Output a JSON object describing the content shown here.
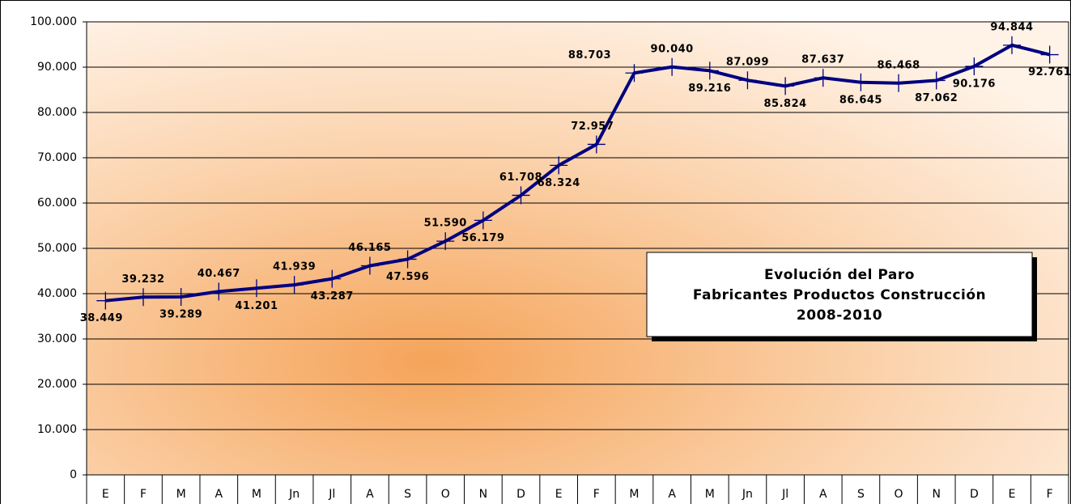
{
  "chart_data": {
    "type": "line",
    "title": [
      "Evolución del Paro",
      "Fabricantes Productos Construcción",
      "2008-2010"
    ],
    "categories": [
      "E",
      "F",
      "M",
      "A",
      "M",
      "Jn",
      "Jl",
      "A",
      "S",
      "O",
      "N",
      "D",
      "E",
      "F",
      "M",
      "A",
      "M",
      "Jn",
      "Jl",
      "A",
      "S",
      "O",
      "N",
      "D",
      "E",
      "F"
    ],
    "values": [
      38449,
      39232,
      39289,
      40467,
      41201,
      41939,
      43287,
      46165,
      47596,
      51590,
      56179,
      61708,
      68324,
      72957,
      88703,
      90040,
      89216,
      87099,
      85824,
      87637,
      86645,
      86468,
      87062,
      90176,
      94844,
      92761
    ],
    "value_labels": [
      "38.449",
      "39.232",
      "39.289",
      "40.467",
      "41.201",
      "41.939",
      "43.287",
      "46.165",
      "47.596",
      "51.590",
      "56.179",
      "61.708",
      "68.324",
      "72.957",
      "88.703",
      "90.040",
      "89.216",
      "87.099",
      "85.824",
      "87.637",
      "86.645",
      "86.468",
      "87.062",
      "90.176",
      "94.844",
      "92.761"
    ],
    "color": "#000080",
    "ylim": [
      0,
      100000
    ],
    "yticks": [
      0,
      {
        "value": 10000,
        "label": "10.000"
      },
      {
        "value": 20000,
        "label": "20.000"
      },
      {
        "value": 30000,
        "label": "30.000"
      },
      {
        "value": 40000,
        "label": "40.000"
      },
      {
        "value": 50000,
        "label": "50.000"
      },
      {
        "value": 60000,
        "label": "60.000"
      },
      {
        "value": 70000,
        "label": "70.000"
      },
      {
        "value": 80000,
        "label": "80.000"
      },
      {
        "value": 90000,
        "label": "90.000"
      },
      {
        "value": 100000,
        "label": "100.000"
      }
    ],
    "grid": true
  }
}
